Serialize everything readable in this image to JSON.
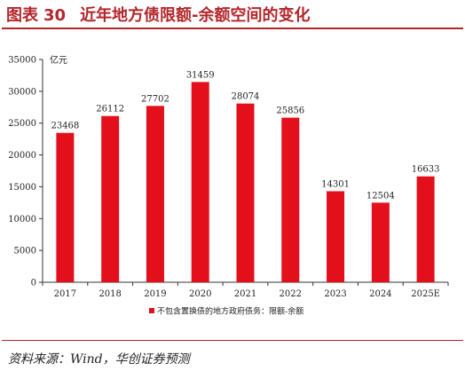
{
  "figure": {
    "label": "图表",
    "number": "30",
    "title": "近年地方债限额-余额空间的变化",
    "source": "资料来源：Wind，华创证券预测"
  },
  "chart_data": {
    "type": "bar",
    "categories": [
      "2017",
      "2018",
      "2019",
      "2020",
      "2021",
      "2022",
      "2023",
      "2024",
      "2025E"
    ],
    "series": [
      {
        "name": "不包含置换债的地方政府债务：限额-余额",
        "color": "#e3101c",
        "values": [
          23468,
          26112,
          27702,
          31459,
          28074,
          25856,
          14301,
          12504,
          16633
        ]
      }
    ],
    "yunit": "亿元",
    "ylim": [
      0,
      35000
    ],
    "yticks": [
      0,
      5000,
      10000,
      15000,
      20000,
      25000,
      30000,
      35000
    ],
    "data_labels": true,
    "grid": false,
    "legend": "bottom"
  }
}
